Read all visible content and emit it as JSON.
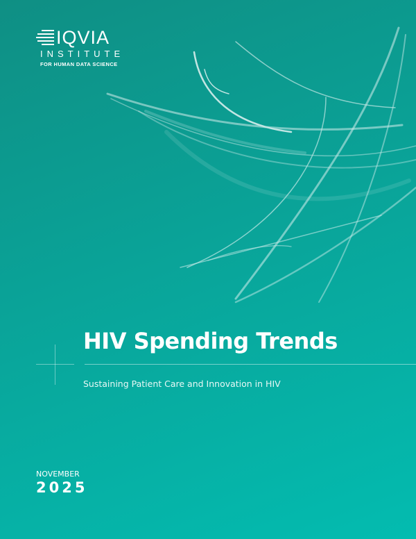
{
  "logo": {
    "brand": "IQVIA",
    "line2": "INSTITUTE",
    "line3": "FOR HUMAN DATA SCIENCE"
  },
  "cover": {
    "title": "HIV Spending Trends",
    "subtitle": "Sustaining Patient Care and Innovation in HIV",
    "month": "NOVEMBER",
    "year": "2025"
  },
  "colors": {
    "gradient_start": "#0f8f84",
    "gradient_end": "#03bcb0",
    "text": "#ffffff"
  }
}
